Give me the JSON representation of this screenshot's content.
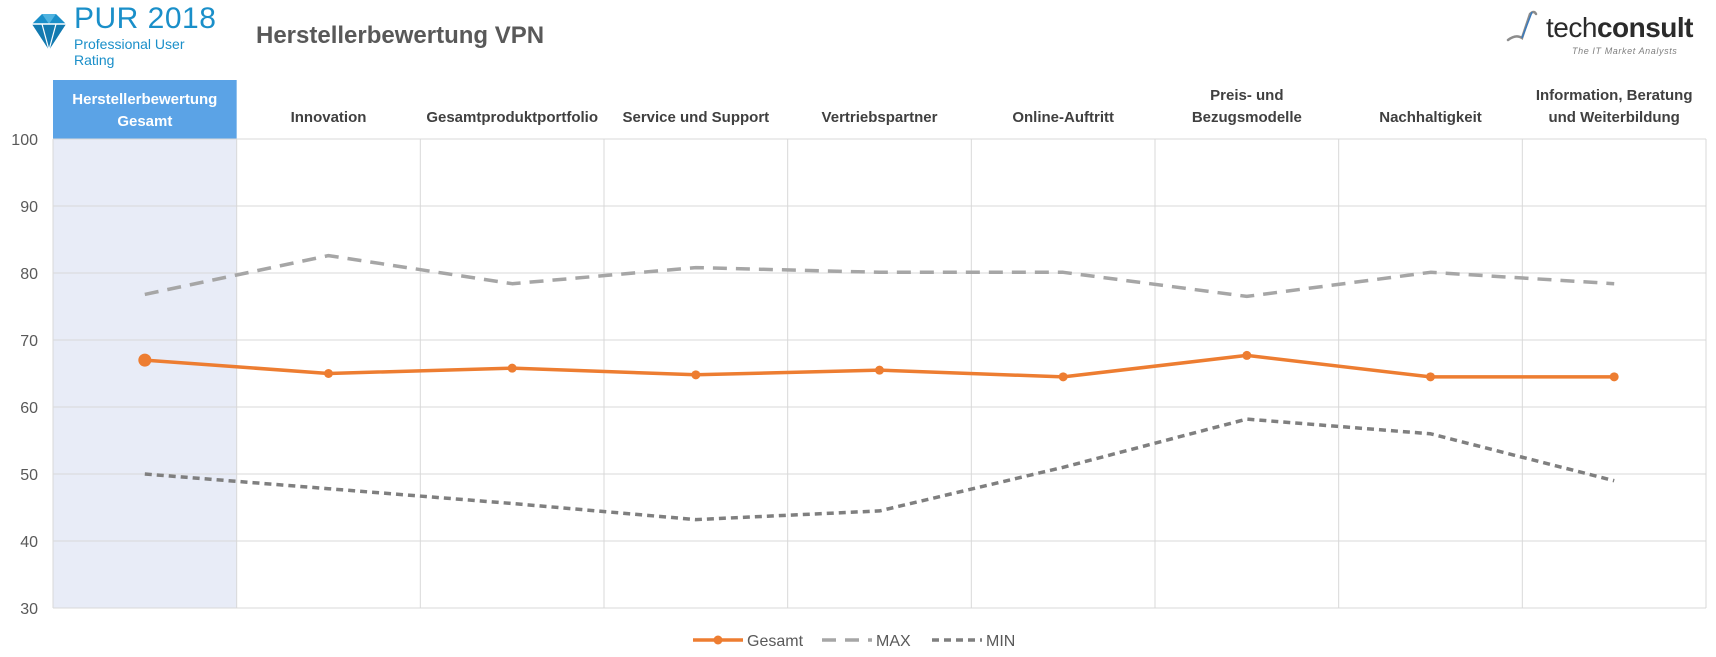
{
  "header": {
    "logo_main": "PUR 2018",
    "logo_sub": "Professional User Rating",
    "title": "Herstellerbewertung VPN",
    "brand_prefix": "tech",
    "brand_suffix": "consult",
    "brand_tagline": "The IT Market Analysts"
  },
  "colors": {
    "gesamt": "#ed7d31",
    "max": "#a6a6a6",
    "min": "#7f7f7f",
    "highlight_header": "#5ba3e6",
    "highlight_column": "#e8ecf7",
    "grid": "#d9d9d9",
    "logo_blue": "#1a8fc9"
  },
  "chart_data": {
    "type": "line",
    "categories": [
      "Herstellerbewertung Gesamt",
      "Innovation",
      "Gesamtproduktportfolio",
      "Service und Support",
      "Vertriebspartner",
      "Online-Auftritt",
      "Preis- und Bezugsmodelle",
      "Nachhaltigkeit",
      "Information, Beratung und Weiterbildung"
    ],
    "category_lines": [
      [
        "Herstellerbewertung",
        "Gesamt"
      ],
      [
        "Innovation"
      ],
      [
        "Gesamtproduktportfolio"
      ],
      [
        "Service und Support"
      ],
      [
        "Vertriebspartner"
      ],
      [
        "Online-Auftritt"
      ],
      [
        "Preis- und",
        "Bezugsmodelle"
      ],
      [
        "Nachhaltigkeit"
      ],
      [
        "Information, Beratung",
        "und Weiterbildung"
      ]
    ],
    "series": [
      {
        "name": "Gesamt",
        "style": "solid-markers",
        "values": [
          67.0,
          65.0,
          65.8,
          64.8,
          65.5,
          64.5,
          67.7,
          64.5,
          64.5
        ]
      },
      {
        "name": "MAX",
        "style": "dashed",
        "values": [
          76.8,
          82.6,
          78.4,
          80.8,
          80.1,
          80.1,
          76.5,
          80.1,
          78.4
        ]
      },
      {
        "name": "MIN",
        "style": "dotted",
        "values": [
          50.0,
          47.8,
          45.6,
          43.2,
          44.5,
          51.0,
          58.2,
          56.0,
          49.0
        ]
      }
    ],
    "ylim": [
      30,
      100
    ],
    "yticks": [
      30,
      40,
      50,
      60,
      70,
      80,
      90,
      100
    ],
    "grid": true,
    "legend": "bottom-center",
    "highlight_category": 0
  }
}
